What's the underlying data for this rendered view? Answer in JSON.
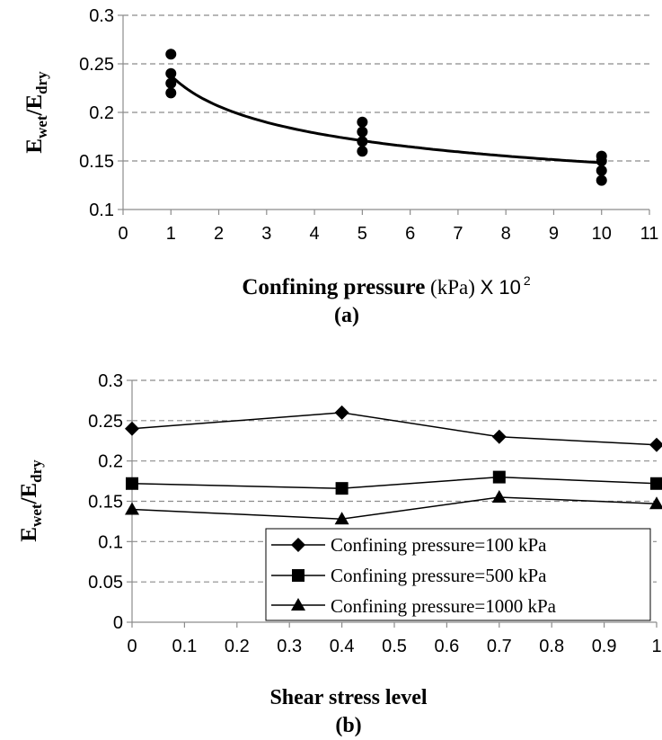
{
  "chart_data": [
    {
      "type": "scatter",
      "panel": "(a)",
      "xlabel_bold": "Confining pressure",
      "xlabel_unit": " (kPa) ",
      "xlabel_scale": "X 10",
      "xlabel_exp": "2",
      "ylabel_main_1": "E",
      "ylabel_sub_1": "wet",
      "ylabel_main_2": "/E",
      "ylabel_sub_2": "dry",
      "xlim": [
        0,
        11
      ],
      "ylim": [
        0.1,
        0.3
      ],
      "xticks": [
        "0",
        "1",
        "2",
        "3",
        "4",
        "5",
        "6",
        "7",
        "8",
        "9",
        "10",
        "11"
      ],
      "yticks": [
        "0.1",
        "0.15",
        "0.2",
        "0.25",
        "0.3"
      ],
      "grid": "horizontal dashed",
      "points": [
        {
          "x": 1,
          "y": 0.26
        },
        {
          "x": 1,
          "y": 0.24
        },
        {
          "x": 1,
          "y": 0.23
        },
        {
          "x": 1,
          "y": 0.22
        },
        {
          "x": 5,
          "y": 0.19
        },
        {
          "x": 5,
          "y": 0.18
        },
        {
          "x": 5,
          "y": 0.17
        },
        {
          "x": 5,
          "y": 0.16
        },
        {
          "x": 10,
          "y": 0.155
        },
        {
          "x": 10,
          "y": 0.15
        },
        {
          "x": 10,
          "y": 0.14
        },
        {
          "x": 10,
          "y": 0.13
        }
      ],
      "trendline": {
        "type": "power",
        "a": 0.238,
        "b": -0.206
      }
    },
    {
      "type": "line",
      "panel": "(b)",
      "xlabel": "Shear stress level",
      "ylabel_main_1": "E",
      "ylabel_sub_1": "wet",
      "ylabel_main_2": "/E",
      "ylabel_sub_2": "dry",
      "xlim": [
        0,
        1
      ],
      "ylim": [
        0,
        0.3
      ],
      "xticks": [
        "0",
        "0.1",
        "0.2",
        "0.3",
        "0.4",
        "0.5",
        "0.6",
        "0.7",
        "0.8",
        "0.9",
        "1"
      ],
      "yticks": [
        "0",
        "0.05",
        "0.1",
        "0.15",
        "0.2",
        "0.25",
        "0.3"
      ],
      "grid": "horizontal dashed",
      "legend_position": "bottom-right",
      "x": [
        0,
        0.4,
        0.7,
        1
      ],
      "series": [
        {
          "name": "Confining pressure=100 kPa",
          "marker": "diamond",
          "values": [
            0.24,
            0.26,
            0.23,
            0.22
          ]
        },
        {
          "name": "Confining pressure=500 kPa",
          "marker": "square",
          "values": [
            0.172,
            0.166,
            0.18,
            0.172
          ]
        },
        {
          "name": "Confining pressure=1000 kPa",
          "marker": "triangle",
          "values": [
            0.14,
            0.128,
            0.155,
            0.147
          ]
        }
      ]
    }
  ]
}
